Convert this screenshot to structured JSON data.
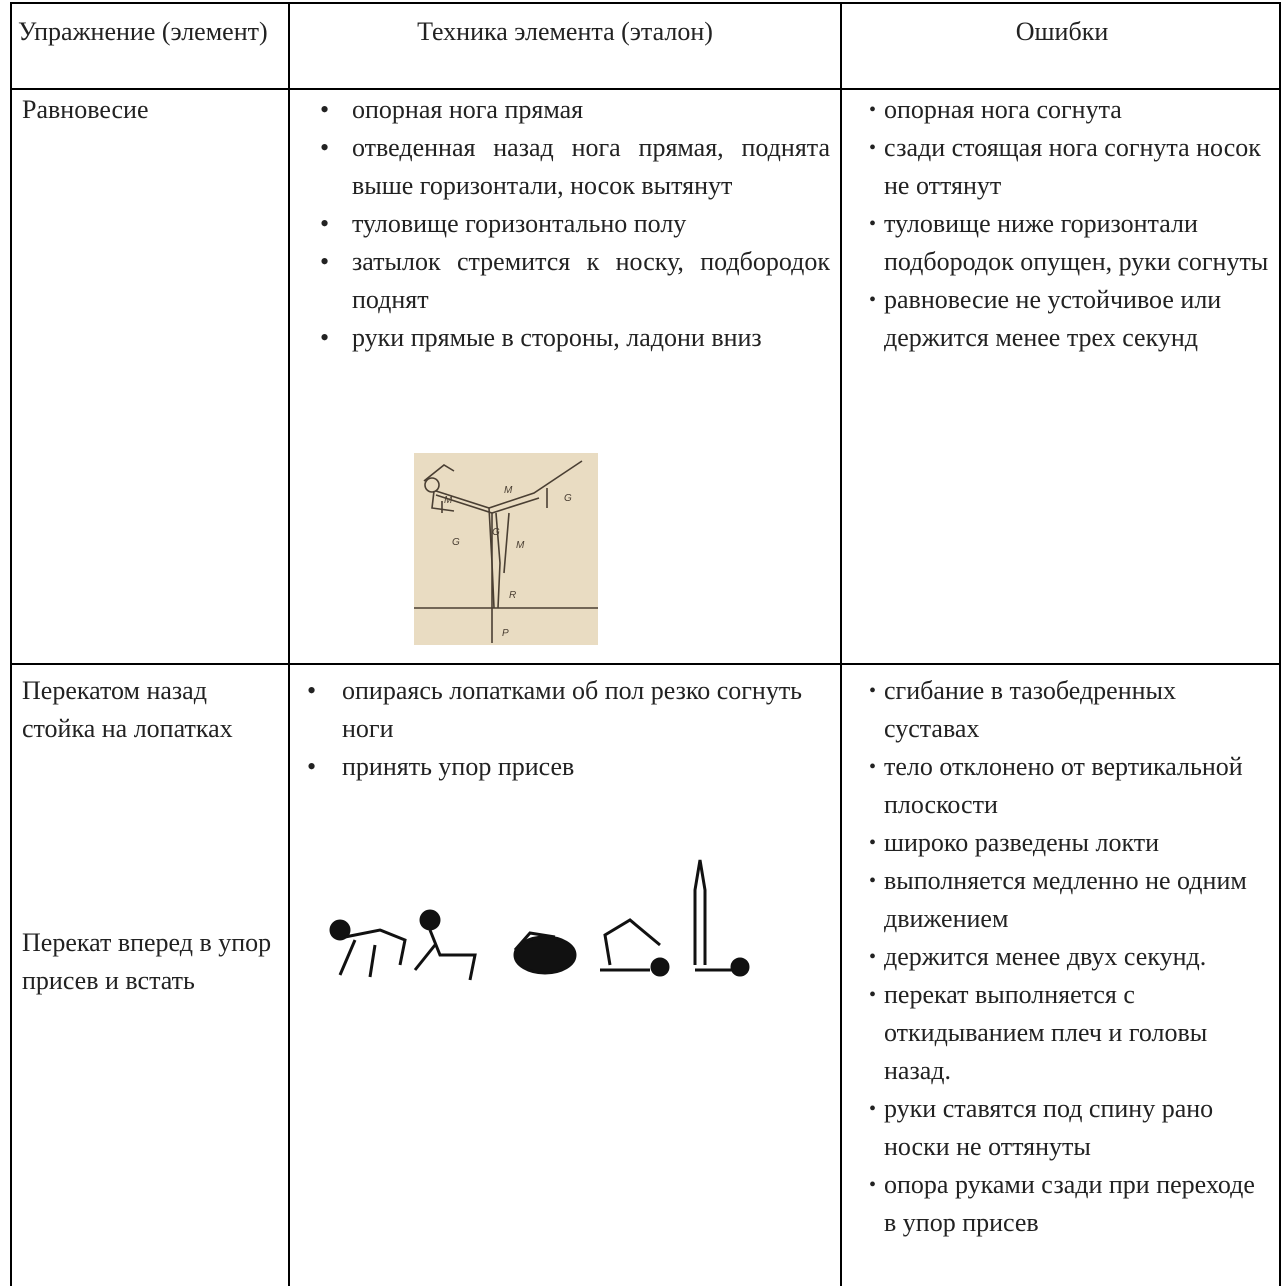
{
  "table": {
    "headers": [
      "Упражнение (элемент)",
      "Техника элемента (эталон)",
      "Ошибки"
    ],
    "rows": [
      [
        [
          "Равновесие"
        ],
        [
          "опорная нога прямая",
          "отведенная назад нога прямая, поднята выше горизонтали, носок вытянут",
          "туловище горизонтально полу",
          "затылок стремится к носку, подбородок поднят",
          "руки прямые в стороны, ладони вниз"
        ],
        [
          "опорная нога согнута",
          "сзади стоящая нога согнута носок не оттянут",
          "туловище ниже горизонтали подбородок опущен, руки согнуты",
          "равновесие не устойчивое или держится менее трех секунд"
        ]
      ],
      [
        [
          "Перекатом назад стойка на лопатках",
          "Перекат вперед в упор присев и встать"
        ],
        [
          "опираясь лопатками об пол резко согнуть ноги",
          "принять упор присев"
        ],
        [
          "сгибание в тазобедренных суставах",
          "тело отклонено от вертикальной плоскости",
          "широко разведены локти",
          "выполняется медленно не одним движением",
          "держится менее двух секунд.",
          "перекат выполняется с откидыванием плеч и головы назад.",
          "руки ставятся под спину рано носки не оттянуты",
          "опора руками сзади при переходе в упор присев"
        ]
      ]
    ],
    "figure_labels": [
      "M",
      "M",
      "G",
      "G",
      "G",
      "M",
      "R",
      "P"
    ]
  }
}
